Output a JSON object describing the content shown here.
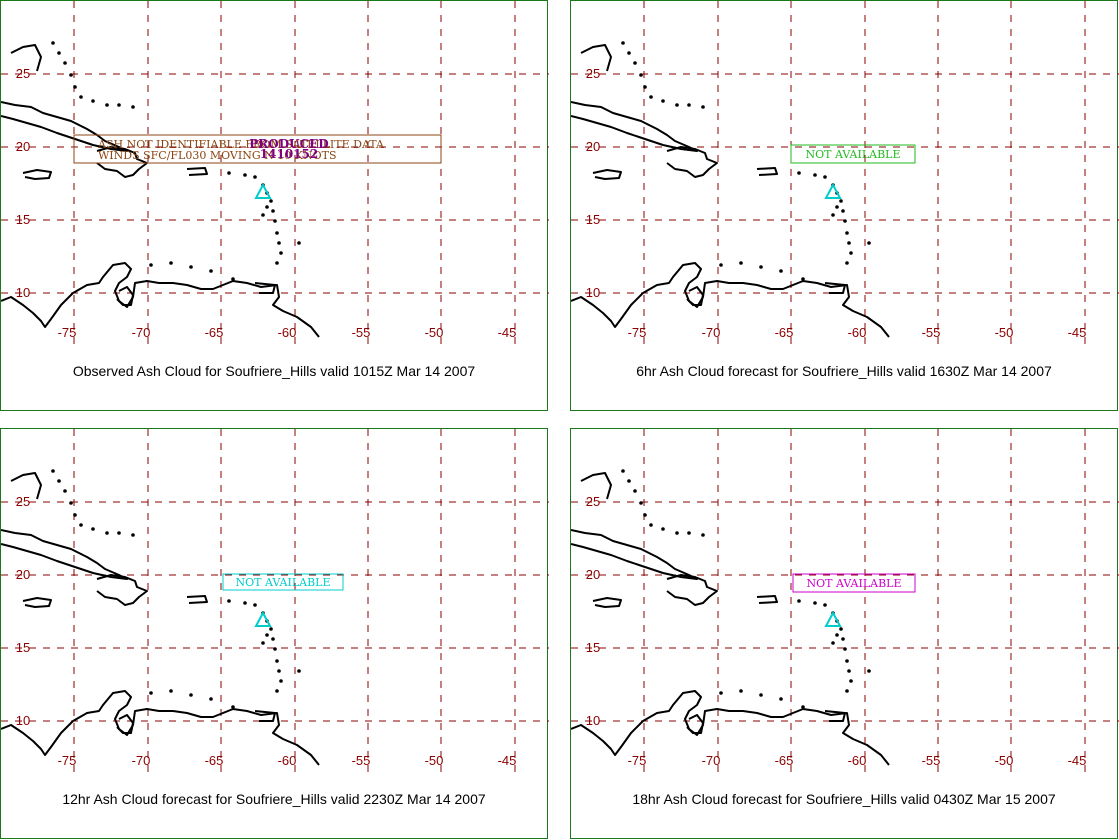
{
  "lon_ticks": [
    "-75",
    "-70",
    "-65",
    "-60",
    "-55",
    "-50",
    "-45"
  ],
  "lat_ticks": [
    "25",
    "20",
    "15",
    "10"
  ],
  "colors": {
    "grid": "#8b0000",
    "tick_label": "#8b0000",
    "border": "#1a7a1a",
    "volcano": "#00cccc",
    "coast": "#000000"
  },
  "icons": {
    "volcano_marker": "triangle-icon"
  },
  "panels": [
    {
      "caption": "Observed Ash Cloud for Soufriere_Hills valid 1015Z Mar 14 2007",
      "box_color": "#8b4513",
      "box_lines": [
        "ASH NOT IDENTIFIABLE FROM SATELLITE DATA",
        "WINDS SFC/FL030 MOVING N 10 KNOTS"
      ],
      "overlay_lines": [
        "PRODUCED",
        "1410152"
      ],
      "overlay_color": "#800080"
    },
    {
      "caption": "6hr Ash Cloud forecast for Soufriere_Hills valid 1630Z Mar 14 2007",
      "box_color": "#22bb22",
      "box_lines": [
        "NOT AVAILABLE"
      ]
    },
    {
      "caption": "12hr Ash Cloud forecast for Soufriere_Hills valid 2230Z Mar 14 2007",
      "box_color": "#00cccc",
      "box_lines": [
        "NOT AVAILABLE"
      ]
    },
    {
      "caption": "18hr Ash Cloud forecast for Soufriere_Hills valid 0430Z Mar 15 2007",
      "box_color": "#cc00cc",
      "box_lines": [
        "NOT AVAILABLE"
      ]
    }
  ]
}
